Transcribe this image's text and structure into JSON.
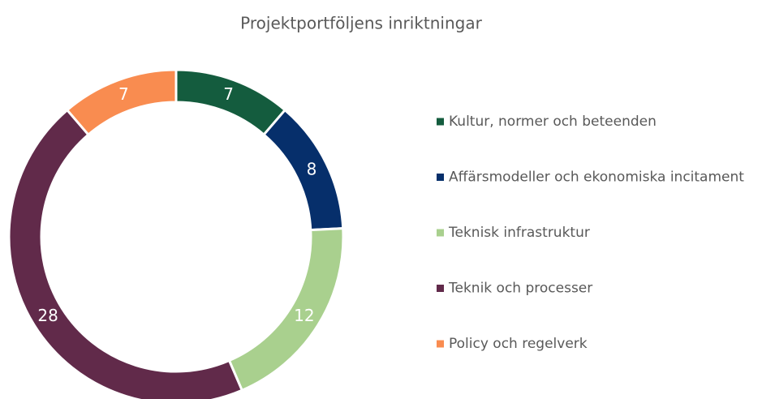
{
  "chart_data": {
    "type": "pie",
    "title": "Projektportföljens inriktningar",
    "categories": [
      "Kultur, normer och beteenden",
      "Affärsmodeller och ekonomiska incitament",
      "Teknisk infrastruktur",
      "Teknik och processer",
      "Policy och regelverk"
    ],
    "values": [
      7,
      8,
      12,
      28,
      7
    ],
    "colors": [
      "#145c3e",
      "#062f6b",
      "#a9d08e",
      "#612a4a",
      "#f98c50"
    ],
    "donut": true,
    "legend": "right"
  }
}
